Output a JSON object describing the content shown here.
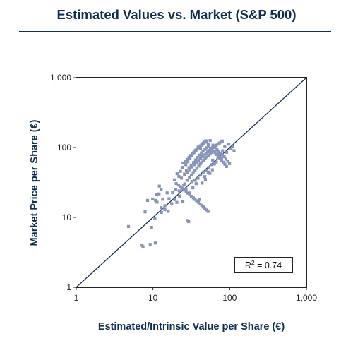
{
  "chart_data": {
    "type": "scatter",
    "title": "Estimated Values vs. Market (S&P 500)",
    "xlabel": "Estimated/Intrinsic Value per Share (€)",
    "ylabel": "Market Price per Share (€)",
    "xscale": "log",
    "yscale": "log",
    "xlim": [
      1,
      1000
    ],
    "ylim": [
      1,
      1000
    ],
    "xticks": [
      1,
      10,
      100,
      1000
    ],
    "xtick_labels": [
      "1",
      "10",
      "100",
      "1,000"
    ],
    "yticks": [
      1,
      10,
      100,
      1000
    ],
    "ytick_labels": [
      "1",
      "10",
      "100",
      "1,000"
    ],
    "grid": false,
    "reference_line": "y = x diagonal",
    "annotation": {
      "base": "R",
      "sup": "2",
      "rest": " = 0.74"
    },
    "marker_color": "#8893b8",
    "line_color": "#0f2f52",
    "points": [
      [
        4.8,
        7.4
      ],
      [
        7.2,
        4.0
      ],
      [
        7.4,
        3.8
      ],
      [
        9.2,
        4.1
      ],
      [
        10.7,
        4.3
      ],
      [
        7.9,
        12.0
      ],
      [
        9.6,
        7.2
      ],
      [
        10.6,
        9.6
      ],
      [
        8.5,
        17.5
      ],
      [
        9.9,
        18.3
      ],
      [
        10.8,
        17.5
      ],
      [
        11.3,
        16.5
      ],
      [
        11.1,
        21.0
      ],
      [
        12.0,
        21.7
      ],
      [
        12.8,
        13.8
      ],
      [
        12.9,
        11.8
      ],
      [
        14.3,
        14.7
      ],
      [
        14.3,
        12.9
      ],
      [
        15.8,
        12.2
      ],
      [
        13.4,
        18.2
      ],
      [
        12.8,
        24.8
      ],
      [
        12.1,
        28.0
      ],
      [
        15.3,
        22.4
      ],
      [
        16.2,
        18.5
      ],
      [
        17.6,
        15.7
      ],
      [
        18.0,
        22.5
      ],
      [
        19.2,
        18.0
      ],
      [
        20.5,
        16.4
      ],
      [
        19.8,
        25.0
      ],
      [
        21.9,
        24.0
      ],
      [
        22.2,
        20.2
      ],
      [
        23.8,
        26.3
      ],
      [
        25.2,
        29.0
      ],
      [
        24.5,
        16.7
      ],
      [
        27.0,
        25.5
      ],
      [
        28.4,
        9.0
      ],
      [
        29.2,
        8.7
      ],
      [
        30.0,
        22.4
      ],
      [
        32.1,
        32.5
      ],
      [
        33.1,
        26.5
      ],
      [
        35.5,
        34.0
      ],
      [
        36.5,
        30.4
      ],
      [
        38.7,
        36.4
      ],
      [
        40.2,
        18.0
      ],
      [
        41.8,
        40.4
      ],
      [
        43.7,
        31.0
      ],
      [
        45.6,
        44.6
      ],
      [
        47.3,
        38.3
      ],
      [
        48.2,
        34.9
      ],
      [
        50.4,
        47.0
      ],
      [
        52.5,
        44.5
      ],
      [
        53.5,
        52.0
      ],
      [
        55.2,
        42.7
      ],
      [
        57.4,
        56.8
      ],
      [
        59.4,
        48.0
      ],
      [
        60.0,
        66.0
      ],
      [
        63.2,
        58.0
      ],
      [
        66.8,
        62.0
      ],
      [
        70.1,
        71.5
      ],
      [
        73.5,
        80.0
      ],
      [
        77.9,
        70.5
      ],
      [
        80.8,
        90.0
      ],
      [
        86.2,
        104.0
      ],
      [
        91.5,
        85.5
      ],
      [
        97.5,
        112.0
      ],
      [
        104.0,
        96.0
      ],
      [
        110.0,
        105.0
      ],
      [
        114.0,
        90.0
      ],
      [
        20.6,
        42.2
      ],
      [
        22.8,
        45.6
      ],
      [
        24.0,
        52.0
      ],
      [
        26.8,
        57.0
      ],
      [
        28.5,
        62.5
      ],
      [
        30.4,
        69.5
      ],
      [
        31.8,
        76.6
      ],
      [
        34.2,
        84.5
      ],
      [
        36.5,
        92.2
      ],
      [
        38.8,
        101.5
      ],
      [
        41.6,
        96.5
      ],
      [
        43.6,
        108.0
      ],
      [
        46.3,
        115.0
      ],
      [
        49.2,
        120.0
      ],
      [
        52.5,
        110.5
      ],
      [
        55.6,
        126.0
      ],
      [
        58.8,
        94.0
      ],
      [
        19.0,
        34.5
      ],
      [
        21.8,
        38.5
      ],
      [
        23.5,
        36.5
      ],
      [
        25.7,
        41.7
      ],
      [
        27.3,
        46.8
      ],
      [
        29.5,
        51.5
      ],
      [
        31.4,
        56.0
      ],
      [
        33.8,
        61.0
      ],
      [
        35.9,
        66.4
      ],
      [
        38.0,
        72.0
      ],
      [
        40.6,
        78.0
      ],
      [
        42.7,
        83.5
      ],
      [
        45.0,
        89.0
      ],
      [
        47.6,
        94.5
      ],
      [
        50.2,
        99.0
      ],
      [
        52.8,
        104.0
      ],
      [
        56.4,
        98.0
      ],
      [
        60.5,
        108.0
      ],
      [
        64.4,
        101.0
      ],
      [
        68.2,
        93.2
      ],
      [
        72.0,
        88.0
      ],
      [
        76.0,
        83.0
      ],
      [
        80.1,
        78.5
      ],
      [
        84.8,
        73.6
      ],
      [
        89.3,
        68.2
      ],
      [
        94.6,
        63.6
      ],
      [
        99.5,
        58.8
      ],
      [
        26.0,
        30.2
      ],
      [
        27.8,
        34.0
      ],
      [
        29.8,
        37.0
      ],
      [
        31.6,
        40.5
      ],
      [
        33.4,
        43.6
      ],
      [
        35.3,
        47.3
      ],
      [
        37.3,
        50.6
      ],
      [
        39.5,
        54.3
      ],
      [
        41.4,
        58.3
      ],
      [
        43.5,
        62.0
      ],
      [
        45.8,
        65.8
      ],
      [
        48.0,
        69.6
      ],
      [
        50.4,
        73.0
      ],
      [
        53.2,
        77.0
      ],
      [
        55.6,
        81.0
      ],
      [
        58.7,
        85.2
      ],
      [
        61.8,
        88.8
      ],
      [
        64.6,
        84.6
      ],
      [
        67.9,
        79.4
      ],
      [
        71.2,
        74.6
      ],
      [
        74.6,
        70.0
      ],
      [
        78.5,
        65.6
      ],
      [
        82.8,
        61.5
      ],
      [
        86.6,
        57.6
      ],
      [
        90.6,
        53.5
      ],
      [
        26.0,
        40.5
      ],
      [
        28.0,
        44.1
      ],
      [
        30.1,
        48.2
      ],
      [
        32.2,
        52.6
      ],
      [
        34.6,
        56.8
      ],
      [
        36.7,
        61.0
      ],
      [
        39.2,
        65.2
      ],
      [
        41.7,
        69.8
      ],
      [
        44.3,
        74.0
      ],
      [
        46.6,
        78.4
      ],
      [
        49.1,
        82.6
      ],
      [
        51.7,
        86.8
      ],
      [
        54.4,
        91.0
      ],
      [
        57.2,
        95.2
      ],
      [
        60.3,
        99.5
      ],
      [
        63.5,
        103.6
      ],
      [
        66.8,
        107.8
      ],
      [
        70.0,
        112.0
      ],
      [
        73.5,
        116.0
      ],
      [
        77.0,
        120.0
      ],
      [
        80.0,
        124.0
      ],
      [
        20.1,
        30.5
      ],
      [
        21.6,
        29.0
      ],
      [
        22.8,
        27.5
      ],
      [
        24.2,
        25.7
      ],
      [
        25.6,
        24.6
      ],
      [
        27.1,
        23.3
      ],
      [
        28.5,
        22.2
      ],
      [
        30.1,
        21.0
      ],
      [
        31.7,
        20.0
      ],
      [
        33.6,
        19.0
      ],
      [
        35.3,
        18.1
      ],
      [
        37.1,
        17.3
      ],
      [
        39.1,
        16.5
      ],
      [
        41.1,
        15.6
      ],
      [
        43.3,
        14.8
      ],
      [
        45.3,
        14.1
      ],
      [
        47.5,
        13.4
      ],
      [
        49.8,
        12.8
      ],
      [
        52.3,
        12.2
      ],
      [
        24.7,
        60.0
      ],
      [
        26.5,
        63.0
      ],
      [
        28.0,
        67.6
      ],
      [
        29.5,
        72.2
      ],
      [
        31.0,
        77.0
      ],
      [
        32.8,
        81.6
      ],
      [
        34.3,
        86.4
      ],
      [
        36.1,
        91.2
      ],
      [
        37.8,
        96.0
      ],
      [
        39.5,
        100.8
      ],
      [
        41.3,
        105.6
      ],
      [
        43.1,
        110.4
      ],
      [
        45.0,
        115.0
      ],
      [
        46.9,
        119.8
      ],
      [
        48.9,
        124.6
      ]
    ]
  }
}
